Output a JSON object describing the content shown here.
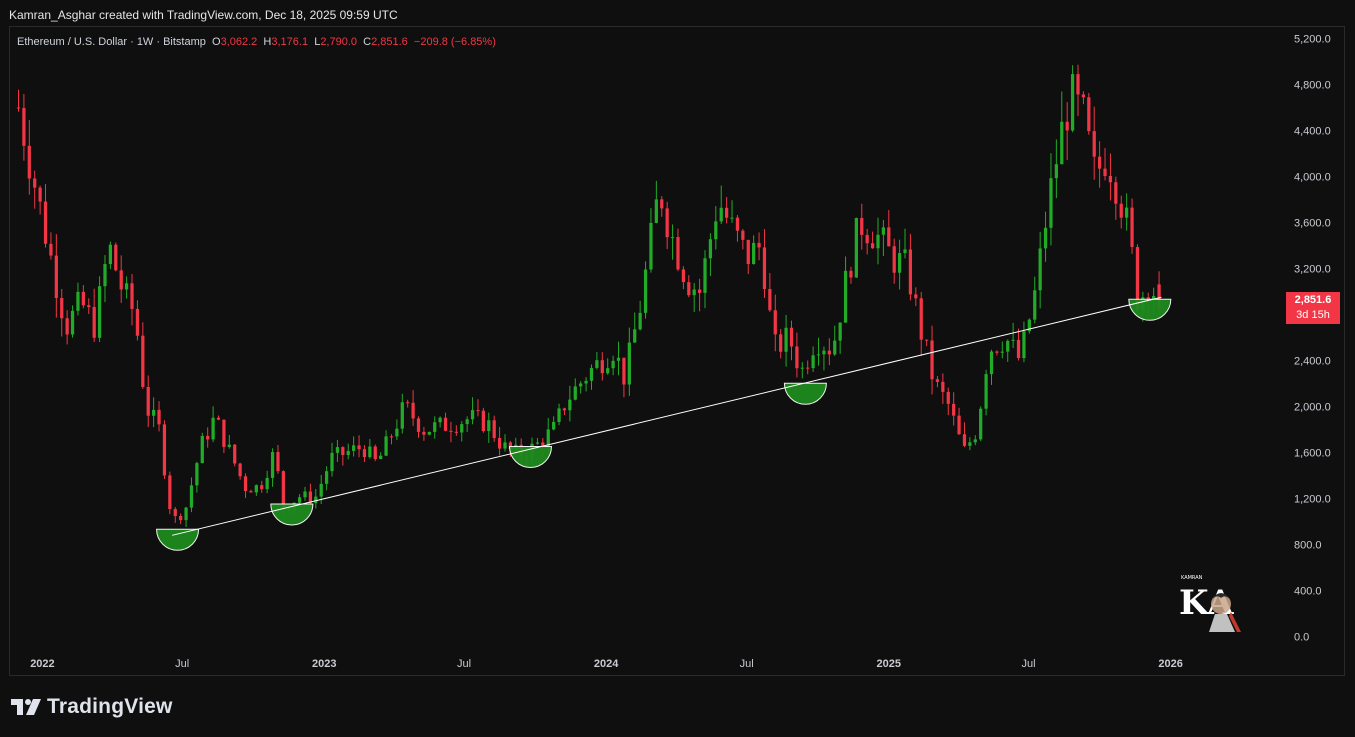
{
  "credit": "Kamran_Asghar created with TradingView.com, Dec 18, 2025 09:59 UTC",
  "ohlc": {
    "symbol": "Ethereum / U.S. Dollar · 1W · Bitstamp",
    "o_label": "O",
    "o_value": "3,062.2",
    "h_label": "H",
    "h_value": "3,176.1",
    "l_label": "L",
    "l_value": "2,790.0",
    "c_label": "C",
    "c_value": "2,851.6",
    "change": "−209.8 (−6.85%)"
  },
  "price_badge": {
    "price": "2,851.6",
    "countdown": "3d 15h"
  },
  "brand": {
    "name": "TradingView",
    "icon": "tradingview-logo-icon"
  },
  "watermark": {
    "icon": "kamran-asghar-logo-icon",
    "text": "KA"
  },
  "colors": {
    "up": "#22ab28",
    "down": "#f23645",
    "trendline": "#ffffff",
    "highlight": "#1e8a1e"
  },
  "chart_data": {
    "type": "candlestick",
    "y_axis": {
      "side": "right",
      "ticks": [
        "5,200.0",
        "4,800.0",
        "4,400.0",
        "4,000.0",
        "3,600.0",
        "3,200.0",
        "2,800.0",
        "2,400.0",
        "2,000.0",
        "1,600.0",
        "1,200.0",
        "800.0",
        "400.0",
        "0.0"
      ],
      "tick_values": [
        5200,
        4800,
        4400,
        4000,
        3600,
        3200,
        2800,
        2400,
        2000,
        1600,
        1200,
        800,
        400,
        0
      ],
      "range": [
        -100,
        5300
      ]
    },
    "x_axis": {
      "ticks": [
        {
          "label": "2022",
          "date": "2022-01-01",
          "bold": true
        },
        {
          "label": "Jul",
          "date": "2022-07-01",
          "bold": false
        },
        {
          "label": "2023",
          "date": "2023-01-01",
          "bold": true
        },
        {
          "label": "Jul",
          "date": "2023-07-01",
          "bold": false
        },
        {
          "label": "2024",
          "date": "2024-01-01",
          "bold": true
        },
        {
          "label": "Jul",
          "date": "2024-07-01",
          "bold": false
        },
        {
          "label": "2025",
          "date": "2025-01-01",
          "bold": true
        },
        {
          "label": "Jul",
          "date": "2025-07-01",
          "bold": false
        },
        {
          "label": "2026",
          "date": "2026-01-01",
          "bold": true
        }
      ],
      "range": [
        "2021-11-20",
        "2026-05-20"
      ]
    },
    "closes": [
      {
        "date": "2021-12-01",
        "close": 4600
      },
      {
        "date": "2021-12-20",
        "close": 4000
      },
      {
        "date": "2022-01-15",
        "close": 3200
      },
      {
        "date": "2022-02-01",
        "close": 2700
      },
      {
        "date": "2022-02-20",
        "close": 2900
      },
      {
        "date": "2022-03-10",
        "close": 2700
      },
      {
        "date": "2022-03-28",
        "close": 3400
      },
      {
        "date": "2022-04-15",
        "close": 3000
      },
      {
        "date": "2022-05-01",
        "close": 2800
      },
      {
        "date": "2022-05-15",
        "close": 2000
      },
      {
        "date": "2022-06-01",
        "close": 1800
      },
      {
        "date": "2022-06-18",
        "close": 1000
      },
      {
        "date": "2022-07-05",
        "close": 1100
      },
      {
        "date": "2022-07-25",
        "close": 1650
      },
      {
        "date": "2022-08-12",
        "close": 1900
      },
      {
        "date": "2022-09-01",
        "close": 1600
      },
      {
        "date": "2022-09-20",
        "close": 1300
      },
      {
        "date": "2022-10-10",
        "close": 1300
      },
      {
        "date": "2022-10-28",
        "close": 1600
      },
      {
        "date": "2022-11-10",
        "close": 1100
      },
      {
        "date": "2022-11-28",
        "close": 1220
      },
      {
        "date": "2022-12-20",
        "close": 1200
      },
      {
        "date": "2023-01-10",
        "close": 1550
      },
      {
        "date": "2023-01-30",
        "close": 1600
      },
      {
        "date": "2023-02-20",
        "close": 1650
      },
      {
        "date": "2023-03-10",
        "close": 1500
      },
      {
        "date": "2023-04-01",
        "close": 1800
      },
      {
        "date": "2023-04-15",
        "close": 2000
      },
      {
        "date": "2023-05-10",
        "close": 1800
      },
      {
        "date": "2023-06-15",
        "close": 1850
      },
      {
        "date": "2023-07-10",
        "close": 1900
      },
      {
        "date": "2023-08-01",
        "close": 1850
      },
      {
        "date": "2023-08-20",
        "close": 1650
      },
      {
        "date": "2023-09-10",
        "close": 1580
      },
      {
        "date": "2023-10-01",
        "close": 1650
      },
      {
        "date": "2023-10-25",
        "close": 1800
      },
      {
        "date": "2023-11-10",
        "close": 2050
      },
      {
        "date": "2023-12-10",
        "close": 2300
      },
      {
        "date": "2024-01-10",
        "close": 2500
      },
      {
        "date": "2024-01-25",
        "close": 2250
      },
      {
        "date": "2024-02-15",
        "close": 2900
      },
      {
        "date": "2024-03-10",
        "close": 3900
      },
      {
        "date": "2024-03-25",
        "close": 3500
      },
      {
        "date": "2024-04-15",
        "close": 3100
      },
      {
        "date": "2024-05-01",
        "close": 3000
      },
      {
        "date": "2024-05-25",
        "close": 3800
      },
      {
        "date": "2024-06-15",
        "close": 3500
      },
      {
        "date": "2024-07-01",
        "close": 3300
      },
      {
        "date": "2024-07-20",
        "close": 3400
      },
      {
        "date": "2024-08-05",
        "close": 2500
      },
      {
        "date": "2024-08-25",
        "close": 2600
      },
      {
        "date": "2024-09-10",
        "close": 2300
      },
      {
        "date": "2024-09-28",
        "close": 2600
      },
      {
        "date": "2024-10-20",
        "close": 2500
      },
      {
        "date": "2024-11-10",
        "close": 3200
      },
      {
        "date": "2024-11-25",
        "close": 3600
      },
      {
        "date": "2024-12-15",
        "close": 3500
      },
      {
        "date": "2025-01-05",
        "close": 3300
      },
      {
        "date": "2025-01-25",
        "close": 3200
      },
      {
        "date": "2025-02-10",
        "close": 2700
      },
      {
        "date": "2025-03-01",
        "close": 2200
      },
      {
        "date": "2025-03-20",
        "close": 2000
      },
      {
        "date": "2025-04-08",
        "close": 1600
      },
      {
        "date": "2025-04-25",
        "close": 1800
      },
      {
        "date": "2025-05-10",
        "close": 2500
      },
      {
        "date": "2025-06-01",
        "close": 2600
      },
      {
        "date": "2025-06-20",
        "close": 2400
      },
      {
        "date": "2025-07-10",
        "close": 3000
      },
      {
        "date": "2025-07-25",
        "close": 3700
      },
      {
        "date": "2025-08-10",
        "close": 4300
      },
      {
        "date": "2025-08-24",
        "close": 4700
      },
      {
        "date": "2025-09-10",
        "close": 4500
      },
      {
        "date": "2025-09-25",
        "close": 4000
      },
      {
        "date": "2025-10-10",
        "close": 4200
      },
      {
        "date": "2025-10-25",
        "close": 3900
      },
      {
        "date": "2025-11-08",
        "close": 3500
      },
      {
        "date": "2025-11-20",
        "close": 2900
      },
      {
        "date": "2025-12-05",
        "close": 3100
      },
      {
        "date": "2025-12-18",
        "close": 2851.6
      }
    ],
    "trendline": {
      "start": {
        "date": "2022-06-18",
        "price": 880
      },
      "end": {
        "date": "2025-12-20",
        "price": 2950
      }
    },
    "highlights": [
      {
        "date": "2022-06-25",
        "price": 880
      },
      {
        "date": "2022-11-20",
        "price": 1100
      },
      {
        "date": "2023-09-25",
        "price": 1600
      },
      {
        "date": "2024-09-15",
        "price": 2150
      },
      {
        "date": "2025-12-05",
        "price": 2880
      }
    ],
    "last_price": 2851.6
  }
}
